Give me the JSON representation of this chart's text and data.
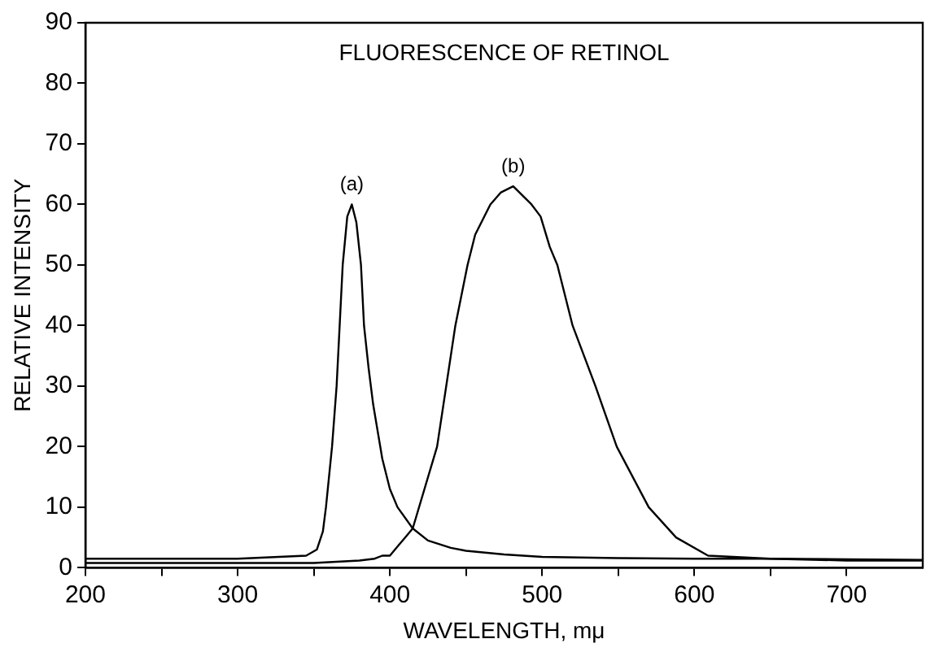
{
  "chart_data": {
    "type": "line",
    "title": "FLUORESCENCE OF RETINOL",
    "xlabel": "WAVELENGTH, mμ",
    "ylabel": "RELATIVE INTENSITY",
    "xlim": [
      200,
      750
    ],
    "ylim": [
      0,
      90
    ],
    "xticks": [
      200,
      {
        "value": 250,
        "label": null
      },
      300,
      {
        "value": 350,
        "label": null
      },
      400,
      {
        "value": 450,
        "label": null
      },
      500,
      {
        "value": 550,
        "label": null
      },
      600,
      {
        "value": 650,
        "label": null
      },
      700
    ],
    "yticks": [
      0,
      10,
      20,
      30,
      40,
      50,
      60,
      70,
      80,
      90
    ],
    "grid": false,
    "legend": false,
    "marker": "none",
    "line_style": "solid",
    "annotations": [
      {
        "text": "(a)",
        "x": 375,
        "y": 60
      },
      {
        "text": "(b)",
        "x": 481,
        "y": 63
      }
    ],
    "series": [
      {
        "color": "#000000",
        "x": [
          200,
          300,
          345,
          352,
          356,
          358,
          362,
          365,
          367,
          369,
          372,
          375,
          378,
          381,
          383,
          386,
          389,
          395,
          400,
          405,
          415,
          425,
          440,
          450,
          475,
          500,
          550,
          600,
          650,
          700,
          750
        ],
        "values": [
          1.5,
          1.5,
          2,
          3,
          6,
          10,
          20,
          30,
          40,
          50,
          58,
          60,
          57,
          50,
          40,
          33,
          27,
          18,
          13,
          10,
          6.5,
          4.5,
          3.3,
          2.8,
          2.2,
          1.8,
          1.6,
          1.5,
          1.5,
          1.4,
          1.3
        ]
      },
      {
        "color": "#000000",
        "x": [
          200,
          300,
          350,
          380,
          390,
          395,
          400,
          405,
          410,
          415,
          431,
          443,
          451,
          456,
          466,
          473,
          481,
          493,
          499,
          505,
          510,
          520,
          535,
          549,
          570,
          588,
          609,
          650,
          700,
          750
        ],
        "values": [
          0.8,
          0.8,
          0.8,
          1.2,
          1.5,
          2,
          2,
          3.5,
          5,
          6.5,
          20,
          40,
          50,
          55,
          60,
          62,
          63,
          60,
          58,
          53,
          50,
          40,
          30,
          20,
          10,
          5,
          2,
          1.5,
          1.2,
          1.2
        ]
      }
    ]
  }
}
